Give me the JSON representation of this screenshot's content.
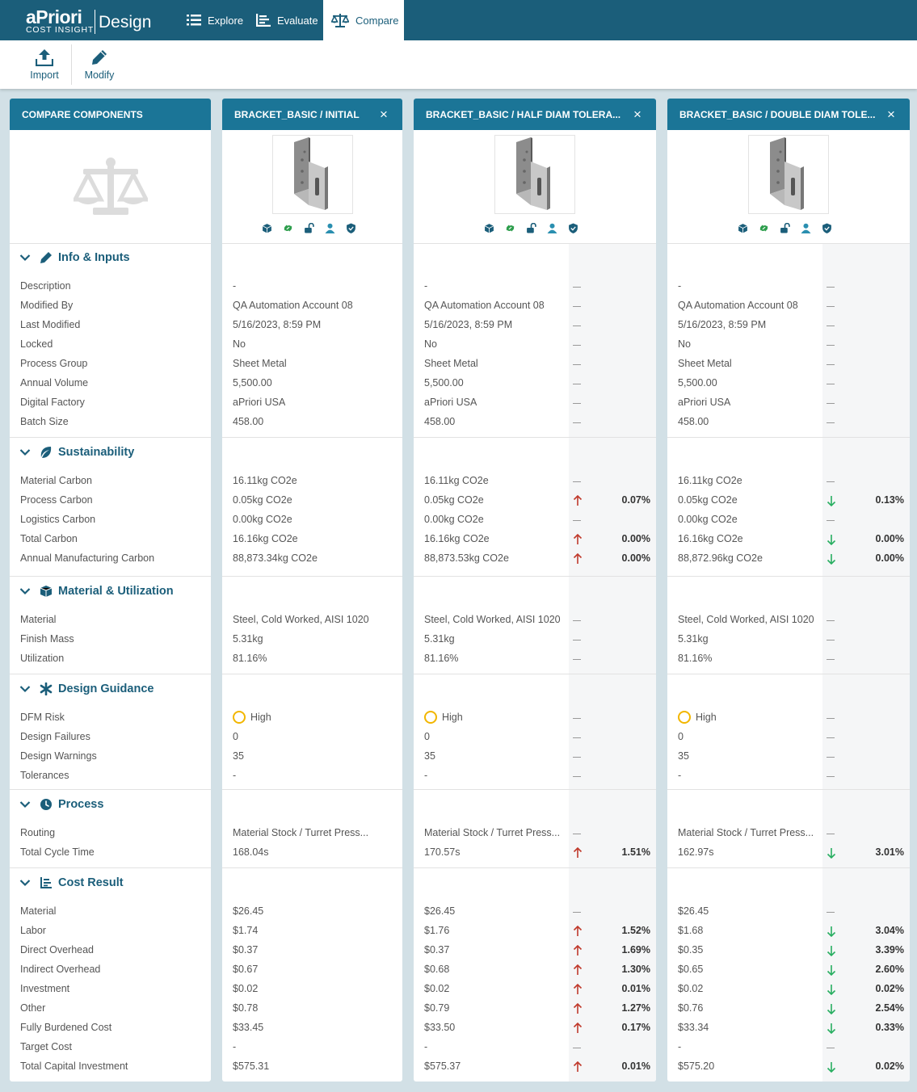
{
  "app": {
    "brand": "aPriori",
    "sub_brand": "COST INSIGHT",
    "product": "Design"
  },
  "nav": [
    {
      "label": "Explore",
      "icon": "list-icon"
    },
    {
      "label": "Evaluate",
      "icon": "chart-list-icon"
    },
    {
      "label": "Compare",
      "icon": "scale-icon",
      "active": true
    }
  ],
  "toolbar": {
    "import_label": "Import",
    "modify_label": "Modify"
  },
  "colors": {
    "header": "#1b5e7a",
    "column_header": "#1b7597",
    "up": "#c0392b",
    "down": "#27ae60",
    "dfm_high": "#f2b600"
  },
  "labels_column": {
    "title": "COMPARE COMPONENTS",
    "sections": [
      {
        "title": "Info & Inputs",
        "icon": "pencil-icon",
        "rows": [
          "Description",
          "Modified By",
          "Last Modified",
          "Locked",
          "Process Group",
          "Annual Volume",
          "Digital Factory",
          "Batch Size"
        ]
      },
      {
        "title": "Sustainability",
        "icon": "leaf-icon",
        "rows": [
          "Material Carbon",
          "Process Carbon",
          "Logistics Carbon",
          "Total Carbon",
          "Annual Manufacturing Carbon"
        ]
      },
      {
        "title": "Material & Utilization",
        "icon": "box-icon",
        "rows": [
          "Material",
          "Finish Mass",
          "Utilization"
        ]
      },
      {
        "title": "Design Guidance",
        "icon": "asterisk-icon",
        "rows": [
          "DFM Risk",
          "Design Failures",
          "Design Warnings",
          "Tolerances"
        ]
      },
      {
        "title": "Process",
        "icon": "clock-icon",
        "rows": [
          "Routing",
          "Total Cycle Time"
        ]
      },
      {
        "title": "Cost Result",
        "icon": "chart-list-icon",
        "rows": [
          "Material",
          "Labor",
          "Direct Overhead",
          "Indirect Overhead",
          "Investment",
          "Other",
          "Fully Burdened Cost",
          "Target Cost",
          "Total Capital Investment"
        ]
      }
    ]
  },
  "components": [
    {
      "title": "BRACKET_BASIC / INITIAL",
      "sections": [
        [
          {
            "v": "-"
          },
          {
            "v": "QA Automation Account 08"
          },
          {
            "v": "5/16/2023, 8:59 PM"
          },
          {
            "v": "No"
          },
          {
            "v": "Sheet Metal"
          },
          {
            "v": "5,500.00"
          },
          {
            "v": "aPriori USA"
          },
          {
            "v": "458.00"
          }
        ],
        [
          {
            "v": "16.11kg CO2e"
          },
          {
            "v": "0.05kg CO2e"
          },
          {
            "v": "0.00kg CO2e"
          },
          {
            "v": "16.16kg CO2e"
          },
          {
            "v": "88,873.34kg CO2e"
          }
        ],
        [
          {
            "v": "Steel, Cold Worked, AISI 1020"
          },
          {
            "v": "5.31kg"
          },
          {
            "v": "81.16%"
          }
        ],
        [
          {
            "v": "High",
            "dfm": true
          },
          {
            "v": "0"
          },
          {
            "v": "35"
          },
          {
            "v": "-"
          }
        ],
        [
          {
            "v": "Material Stock / Turret Press..."
          },
          {
            "v": "168.04s"
          }
        ],
        [
          {
            "v": "$26.45"
          },
          {
            "v": "$1.74"
          },
          {
            "v": "$0.37"
          },
          {
            "v": "$0.67"
          },
          {
            "v": "$0.02"
          },
          {
            "v": "$0.78"
          },
          {
            "v": "$33.45"
          },
          {
            "v": "-"
          },
          {
            "v": "$575.31"
          }
        ]
      ]
    },
    {
      "title": "BRACKET_BASIC / HALF DIAM TOLERA...",
      "sections": [
        [
          {
            "v": "-",
            "d": "none"
          },
          {
            "v": "QA Automation Account 08",
            "d": "none"
          },
          {
            "v": "5/16/2023, 8:59 PM",
            "d": "none"
          },
          {
            "v": "No",
            "d": "none"
          },
          {
            "v": "Sheet Metal",
            "d": "none"
          },
          {
            "v": "5,500.00",
            "d": "none"
          },
          {
            "v": "aPriori USA",
            "d": "none"
          },
          {
            "v": "458.00",
            "d": "none"
          }
        ],
        [
          {
            "v": "16.11kg CO2e",
            "d": "none"
          },
          {
            "v": "0.05kg CO2e",
            "d": "up",
            "p": "0.07%"
          },
          {
            "v": "0.00kg CO2e",
            "d": "none"
          },
          {
            "v": "16.16kg CO2e",
            "d": "up",
            "p": "0.00%"
          },
          {
            "v": "88,873.53kg CO2e",
            "d": "up",
            "p": "0.00%"
          }
        ],
        [
          {
            "v": "Steel, Cold Worked, AISI 1020",
            "d": "none"
          },
          {
            "v": "5.31kg",
            "d": "none"
          },
          {
            "v": "81.16%",
            "d": "none"
          }
        ],
        [
          {
            "v": "High",
            "dfm": true,
            "d": "none"
          },
          {
            "v": "0",
            "d": "none"
          },
          {
            "v": "35",
            "d": "none"
          },
          {
            "v": "-",
            "d": "none"
          }
        ],
        [
          {
            "v": "Material Stock / Turret Press...",
            "d": "none"
          },
          {
            "v": "170.57s",
            "d": "up",
            "p": "1.51%"
          }
        ],
        [
          {
            "v": "$26.45",
            "d": "none"
          },
          {
            "v": "$1.76",
            "d": "up",
            "p": "1.52%"
          },
          {
            "v": "$0.37",
            "d": "up",
            "p": "1.69%"
          },
          {
            "v": "$0.68",
            "d": "up",
            "p": "1.30%"
          },
          {
            "v": "$0.02",
            "d": "up",
            "p": "0.01%"
          },
          {
            "v": "$0.79",
            "d": "up",
            "p": "1.27%"
          },
          {
            "v": "$33.50",
            "d": "up",
            "p": "0.17%"
          },
          {
            "v": "-",
            "d": "none"
          },
          {
            "v": "$575.37",
            "d": "up",
            "p": "0.01%"
          }
        ]
      ]
    },
    {
      "title": "BRACKET_BASIC / DOUBLE DIAM TOLE...",
      "sections": [
        [
          {
            "v": "-",
            "d": "none"
          },
          {
            "v": "QA Automation Account 08",
            "d": "none"
          },
          {
            "v": "5/16/2023, 8:59 PM",
            "d": "none"
          },
          {
            "v": "No",
            "d": "none"
          },
          {
            "v": "Sheet Metal",
            "d": "none"
          },
          {
            "v": "5,500.00",
            "d": "none"
          },
          {
            "v": "aPriori USA",
            "d": "none"
          },
          {
            "v": "458.00",
            "d": "none"
          }
        ],
        [
          {
            "v": "16.11kg CO2e",
            "d": "none"
          },
          {
            "v": "0.05kg CO2e",
            "d": "down",
            "p": "0.13%"
          },
          {
            "v": "0.00kg CO2e",
            "d": "none"
          },
          {
            "v": "16.16kg CO2e",
            "d": "down",
            "p": "0.00%"
          },
          {
            "v": "88,872.96kg CO2e",
            "d": "down",
            "p": "0.00%"
          }
        ],
        [
          {
            "v": "Steel, Cold Worked, AISI 1020",
            "d": "none"
          },
          {
            "v": "5.31kg",
            "d": "none"
          },
          {
            "v": "81.16%",
            "d": "none"
          }
        ],
        [
          {
            "v": "High",
            "dfm": true,
            "d": "none"
          },
          {
            "v": "0",
            "d": "none"
          },
          {
            "v": "35",
            "d": "none"
          },
          {
            "v": "-",
            "d": "none"
          }
        ],
        [
          {
            "v": "Material Stock / Turret Press...",
            "d": "none"
          },
          {
            "v": "162.97s",
            "d": "down",
            "p": "3.01%"
          }
        ],
        [
          {
            "v": "$26.45",
            "d": "none"
          },
          {
            "v": "$1.68",
            "d": "down",
            "p": "3.04%"
          },
          {
            "v": "$0.35",
            "d": "down",
            "p": "3.39%"
          },
          {
            "v": "$0.65",
            "d": "down",
            "p": "2.60%"
          },
          {
            "v": "$0.02",
            "d": "down",
            "p": "0.02%"
          },
          {
            "v": "$0.76",
            "d": "down",
            "p": "2.54%"
          },
          {
            "v": "$33.34",
            "d": "down",
            "p": "0.33%"
          },
          {
            "v": "-",
            "d": "none"
          },
          {
            "v": "$575.20",
            "d": "down",
            "p": "0.02%"
          }
        ]
      ]
    }
  ]
}
